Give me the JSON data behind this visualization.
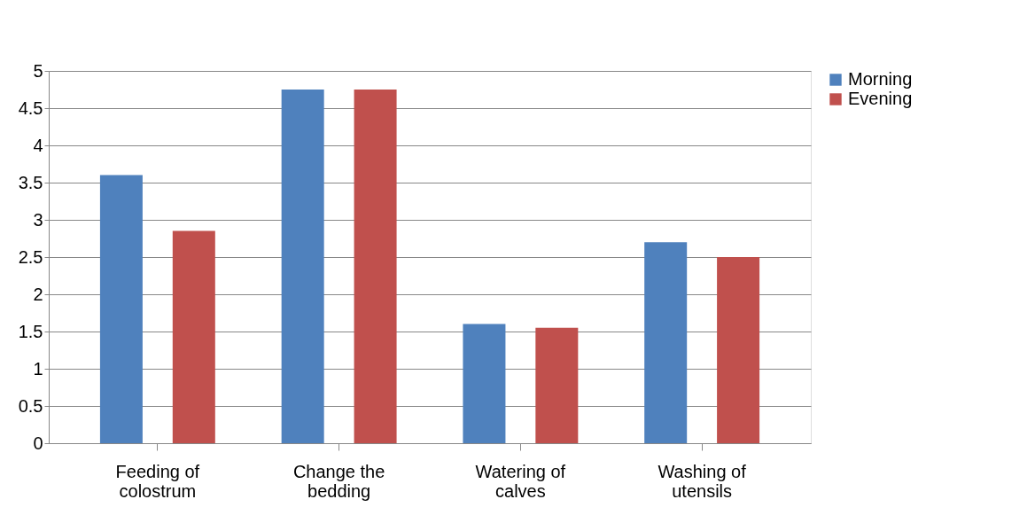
{
  "chart_data": {
    "type": "bar",
    "categories": [
      "Feeding of colostrum",
      "Change the bedding",
      "Watering of calves",
      "Washing of utensils"
    ],
    "series": [
      {
        "name": "Morning",
        "color": "#4f81bd",
        "values": [
          3.6,
          4.75,
          1.6,
          2.7
        ]
      },
      {
        "name": "Evening",
        "color": "#c0504d",
        "values": [
          2.85,
          4.75,
          1.55,
          2.5
        ]
      }
    ],
    "ylim": [
      0,
      5
    ],
    "yticks": [
      0,
      0.5,
      1,
      1.5,
      2,
      2.5,
      3,
      3.5,
      4,
      4.5,
      5
    ],
    "grid": "y",
    "legend": "right"
  }
}
